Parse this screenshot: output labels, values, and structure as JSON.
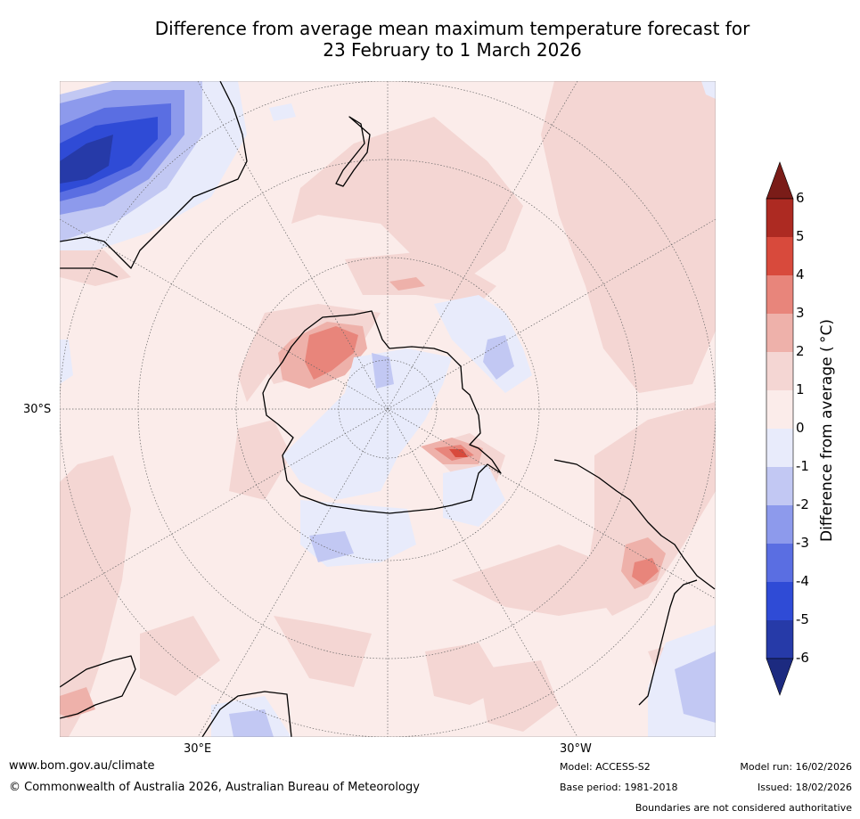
{
  "title": {
    "line1": "Difference from average mean maximum temperature forecast for",
    "line2": "23 February to 1 March 2026"
  },
  "map": {
    "projection": "south polar stereographic",
    "labels": {
      "lat_30s": "30°S",
      "lon_30e": "30°E",
      "lon_30w": "30°W"
    }
  },
  "colorbar": {
    "label": "Difference from average ( °C)",
    "ticks": [
      "6",
      "5",
      "4",
      "3",
      "2",
      "1",
      "0",
      "-1",
      "-2",
      "-3",
      "-4",
      "-5",
      "-6"
    ],
    "colors": [
      "#7a1c18",
      "#ad2a22",
      "#d84a3c",
      "#e8857b",
      "#eeb1aa",
      "#f4d6d3",
      "#fbecea",
      "#e8ebfb",
      "#c2c8f3",
      "#8d9aec",
      "#5a6ee2",
      "#2f4bd6",
      "#263aa8",
      "#1c2a80"
    ]
  },
  "footer": {
    "website": "www.bom.gov.au/climate",
    "copyright": "© Commonwealth of Australia 2026, Australian Bureau of Meteorology",
    "model": "Model: ACCESS-S2",
    "base_period": "Base period: 1981-2018",
    "model_run": "Model run: 16/02/2026",
    "issued": "Issued: 18/02/2026",
    "disclaimer": "Boundaries are not considered authoritative"
  }
}
